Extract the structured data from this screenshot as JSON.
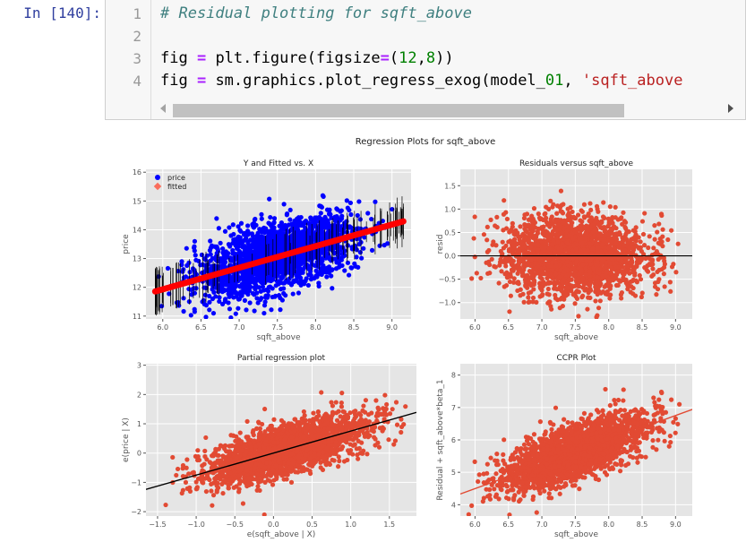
{
  "cell": {
    "prompt": "In [140]:",
    "lines": [
      {
        "num": "1",
        "code": "# Residual plotting for sqft_above"
      },
      {
        "num": "2",
        "code": ""
      },
      {
        "num": "3",
        "code": "fig = plt.figure(figsize=(12,8))"
      },
      {
        "num": "4",
        "code": "fig = sm.graphics.plot_regress_exog(model_01, 'sqft_above"
      }
    ]
  },
  "figure": {
    "suptitle": "Regression Plots for sqft_above"
  },
  "colors": {
    "price": "#0000ff",
    "fitted": "#fa6d5c",
    "points": "#e24a33",
    "line_red": "#ff0000",
    "axes_bg": "#e5e5e5",
    "grid": "#ffffff"
  },
  "chart_data": [
    {
      "type": "scatter",
      "title": "Y and Fitted vs. X",
      "xlabel": "sqft_above",
      "ylabel": "price",
      "xlim": [
        5.78,
        9.25
      ],
      "ylim": [
        10.9,
        16.1
      ],
      "x_ticks": [
        6.0,
        6.5,
        7.0,
        7.5,
        8.0,
        8.5,
        9.0
      ],
      "x_tick_labels": [
        "6.0",
        "6.5",
        "7.0",
        "7.5",
        "8.0",
        "8.5",
        "9.0"
      ],
      "y_ticks": [
        11,
        12,
        13,
        14,
        15,
        16
      ],
      "y_tick_labels": [
        "11",
        "12",
        "13",
        "14",
        "15",
        "16"
      ],
      "grid": true,
      "legend": "top-left",
      "series": [
        {
          "name": "price",
          "kind": "points",
          "color": "#0000ff",
          "x_range": [
            5.9,
            9.1
          ],
          "trend": {
            "intercept": 7.43,
            "slope": 0.75
          },
          "spread": 0.55
        },
        {
          "name": "fitted",
          "kind": "fitted",
          "color": "#ff0000",
          "x_range": [
            5.9,
            9.15
          ],
          "trend": {
            "intercept": 7.43,
            "slope": 0.75
          },
          "errorbars": true
        }
      ]
    },
    {
      "type": "scatter",
      "title": "Residuals versus sqft_above",
      "xlabel": "sqft_above",
      "ylabel": "resid",
      "xlim": [
        5.78,
        9.25
      ],
      "ylim": [
        -1.35,
        1.85
      ],
      "x_ticks": [
        6.0,
        6.5,
        7.0,
        7.5,
        8.0,
        8.5,
        9.0
      ],
      "x_tick_labels": [
        "6.0",
        "6.5",
        "7.0",
        "7.5",
        "8.0",
        "8.5",
        "9.0"
      ],
      "y_ticks": [
        -1.0,
        -0.5,
        0.0,
        0.5,
        1.0,
        1.5
      ],
      "y_tick_labels": [
        "−1.0",
        "−0.5",
        "0.0",
        "0.5",
        "1.0",
        "1.5"
      ],
      "grid": true,
      "series": [
        {
          "kind": "points",
          "color": "#e24a33",
          "x_range": [
            5.9,
            9.1
          ],
          "trend": {
            "intercept": 0,
            "slope": 0
          },
          "spread": 0.42
        },
        {
          "kind": "hline",
          "color": "#000000",
          "y": 0
        }
      ]
    },
    {
      "type": "scatter",
      "title": "Partial regression plot",
      "xlabel": "e(sqft_above | X)",
      "ylabel": "e(price | X)",
      "xlim": [
        -1.65,
        1.85
      ],
      "ylim": [
        -2.15,
        3.05
      ],
      "x_ticks": [
        -1.5,
        -1.0,
        -0.5,
        0.0,
        0.5,
        1.0,
        1.5
      ],
      "x_tick_labels": [
        "−1.5",
        "−1.0",
        "−0.5",
        "0.0",
        "0.5",
        "1.0",
        "1.5"
      ],
      "y_ticks": [
        -2,
        -1,
        0,
        1,
        2,
        3
      ],
      "y_tick_labels": [
        "−2",
        "−1",
        "0",
        "1",
        "2",
        "3"
      ],
      "grid": true,
      "series": [
        {
          "kind": "points",
          "color": "#e24a33",
          "x_range": [
            -1.4,
            1.75
          ],
          "trend": {
            "intercept": 0,
            "slope": 0.75
          },
          "spread": 0.42
        },
        {
          "kind": "line",
          "color": "#000000",
          "x": [
            -1.65,
            1.85
          ],
          "y": [
            -1.24,
            1.39
          ]
        }
      ]
    },
    {
      "type": "scatter",
      "title": "CCPR Plot",
      "xlabel": "sqft_above",
      "ylabel": "Residual + sqft_above*beta_1",
      "xlim": [
        5.78,
        9.25
      ],
      "ylim": [
        3.65,
        8.35
      ],
      "x_ticks": [
        6.0,
        6.5,
        7.0,
        7.5,
        8.0,
        8.5,
        9.0
      ],
      "x_tick_labels": [
        "6.0",
        "6.5",
        "7.0",
        "7.5",
        "8.0",
        "8.5",
        "9.0"
      ],
      "y_ticks": [
        4,
        5,
        6,
        7,
        8
      ],
      "y_tick_labels": [
        "4",
        "5",
        "6",
        "7",
        "8"
      ],
      "grid": true,
      "series": [
        {
          "kind": "points",
          "color": "#e24a33",
          "x_range": [
            5.9,
            9.1
          ],
          "trend": {
            "intercept": 0,
            "slope": 0.75
          },
          "spread": 0.42
        },
        {
          "kind": "line",
          "color": "#e24a33",
          "x": [
            5.78,
            9.25
          ],
          "y": [
            4.33,
            6.94
          ]
        }
      ]
    }
  ]
}
